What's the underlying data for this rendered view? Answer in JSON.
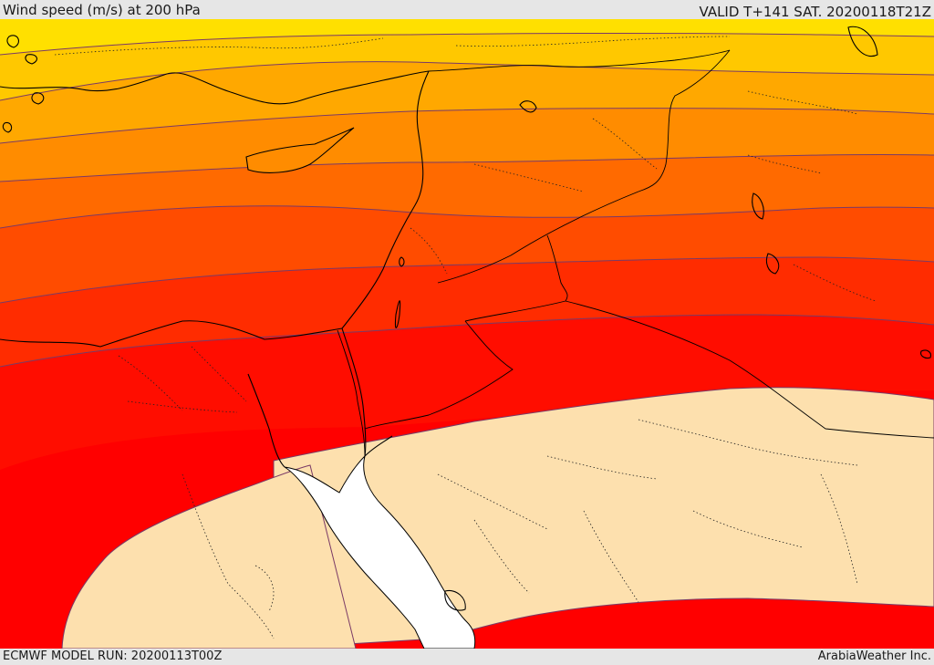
{
  "header": {
    "title": "Wind speed (m/s) at 200 hPa",
    "valid_time": "VALID T+141 SAT. 20200118T21Z"
  },
  "footer": {
    "model_run": "ECMWF MODEL RUN: 20200113T00Z",
    "credit": "ArabiaWeather Inc."
  },
  "map": {
    "variable": "wind speed",
    "level": "200 hPa",
    "bands_top_to_bottom": [
      {
        "color": "#ffe000"
      },
      {
        "color": "#ffc800"
      },
      {
        "color": "#ffa800"
      },
      {
        "color": "#ff8c00"
      },
      {
        "color": "#ff6a00"
      },
      {
        "color": "#ff4c00"
      },
      {
        "color": "#ff2c00"
      },
      {
        "color": "#ff0d00"
      },
      {
        "color": "#ff0000"
      }
    ],
    "calm_color": "#fde0ae",
    "sea_color": "#ffffff",
    "contour_color": "#7a3a66",
    "coast_color": "#000000"
  }
}
